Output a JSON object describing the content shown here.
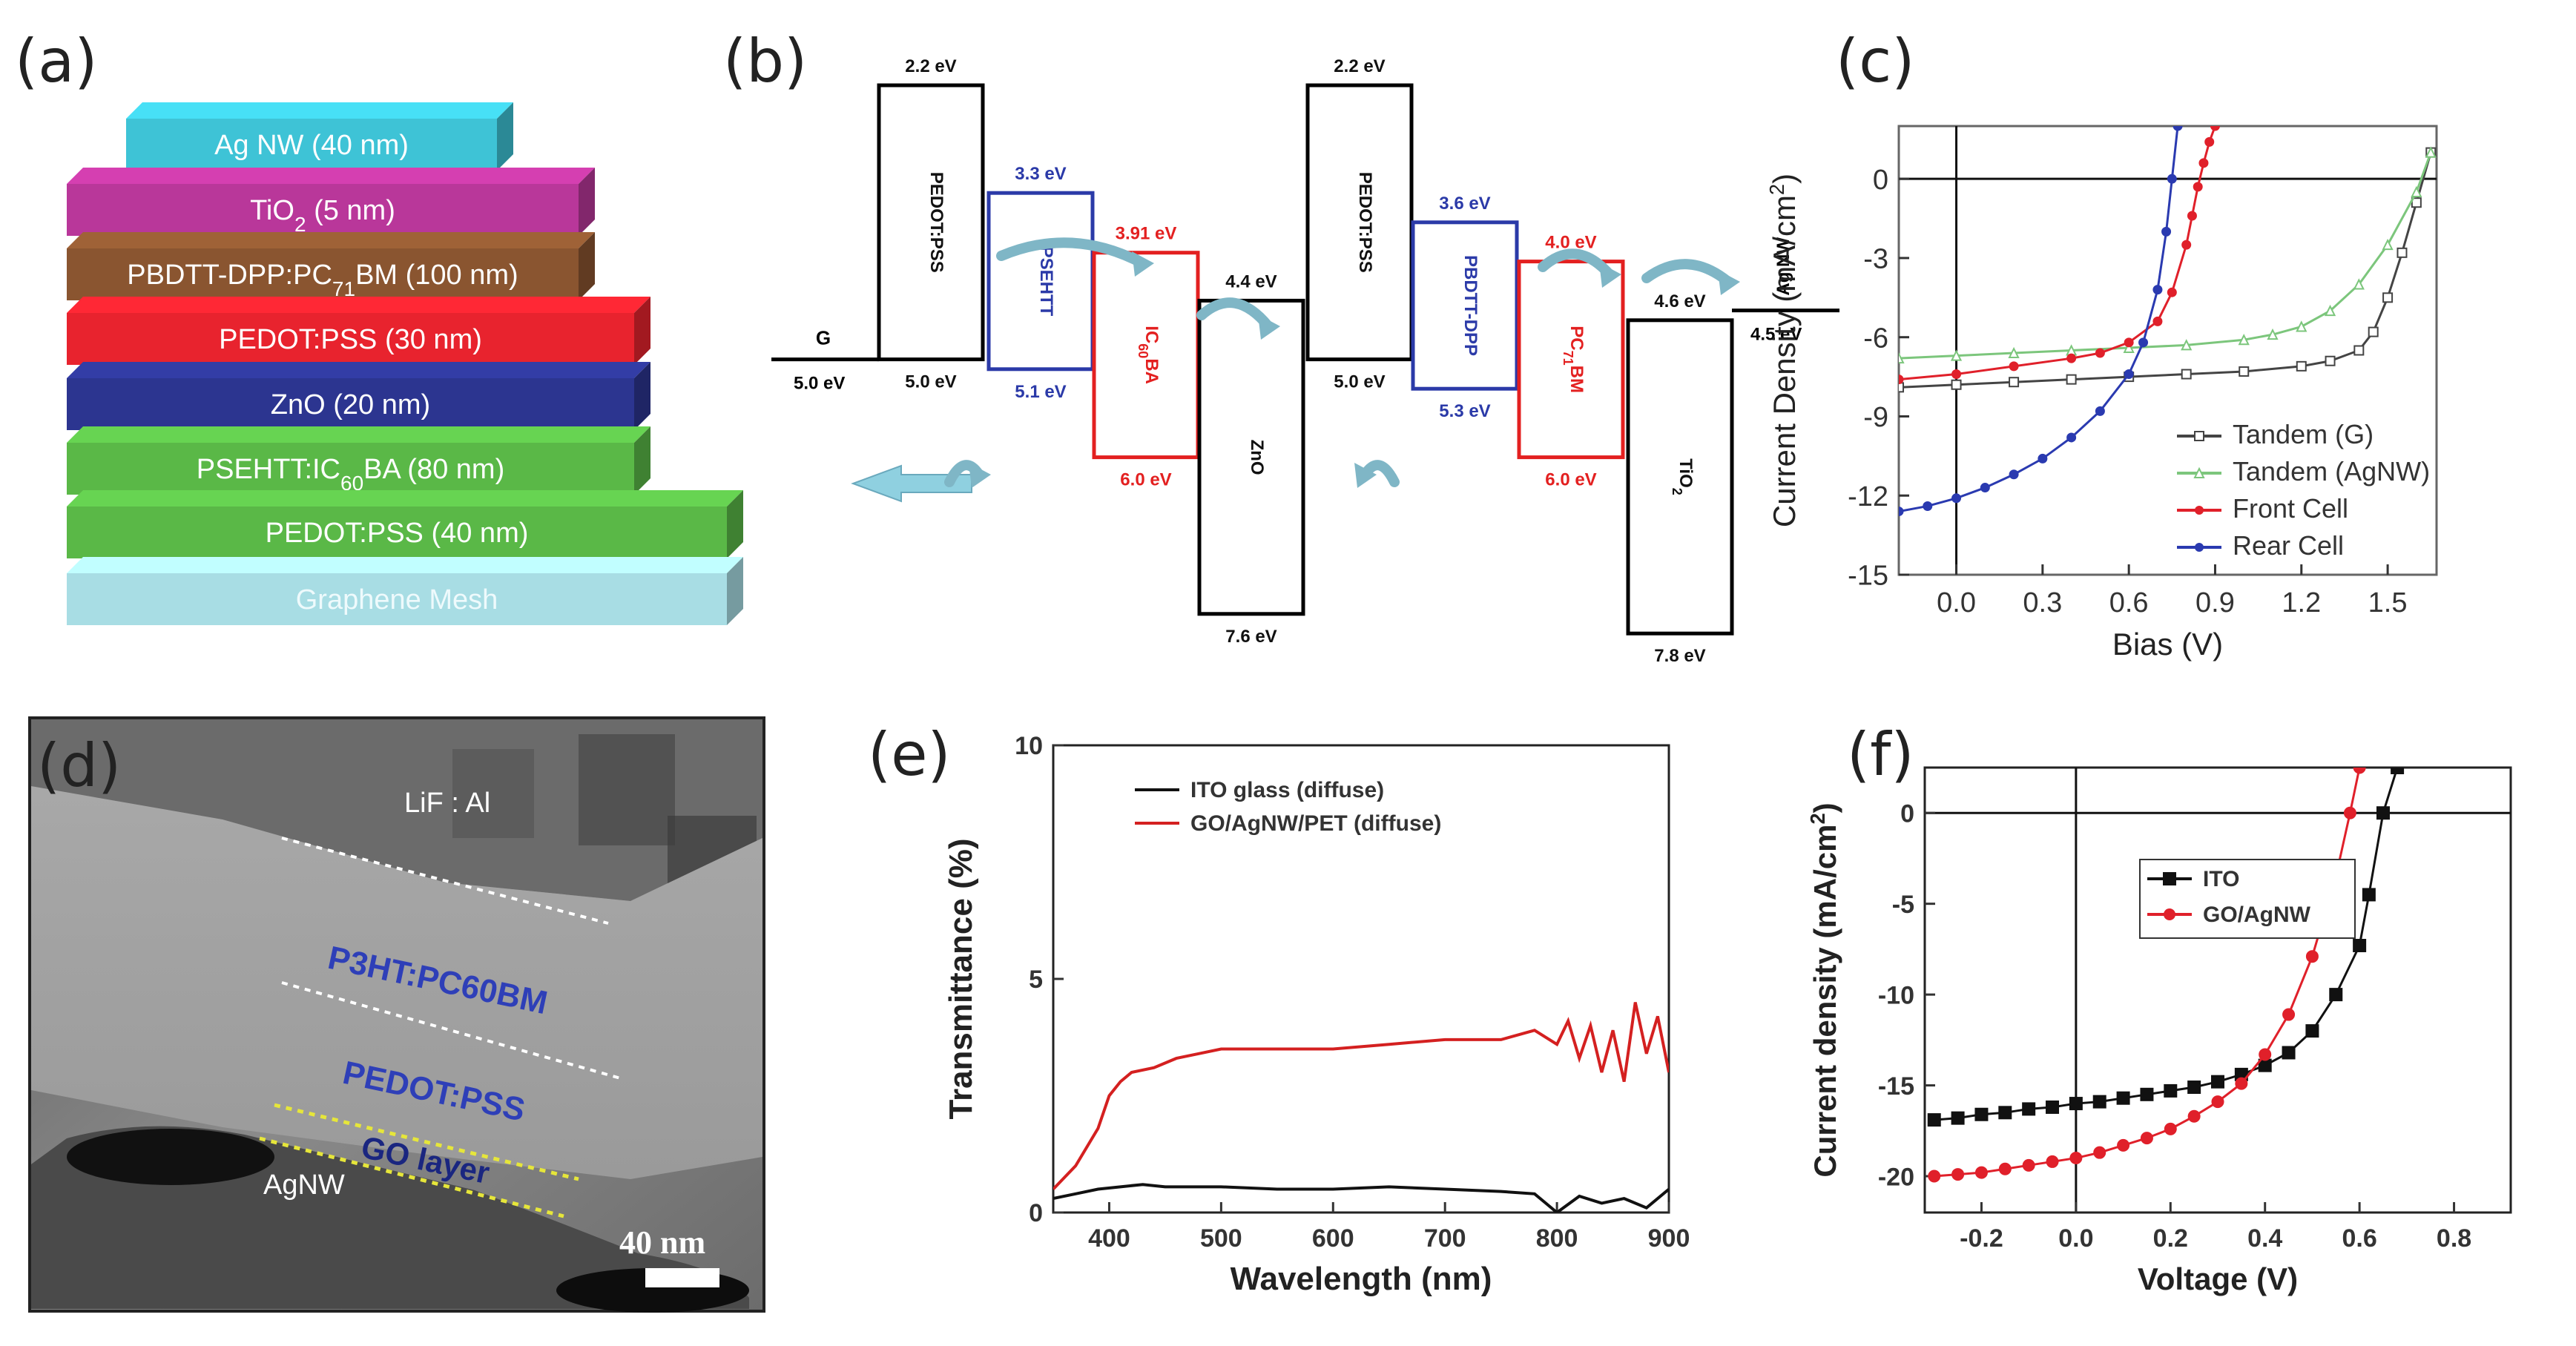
{
  "panel_labels": {
    "a": "(a)",
    "b": "(b)",
    "c": "(c)",
    "d": "(d)",
    "e": "(e)",
    "f": "(f)"
  },
  "panel_a": {
    "layers": [
      {
        "text": "Ag NW (40 nm)",
        "color": "#3ec3d6"
      },
      {
        "text": "TiO2 (5 nm)",
        "color": "#b9379a"
      },
      {
        "text": "PBDTT-DPP:PC71BM (100 nm)",
        "color": "#8a5530"
      },
      {
        "text": "PEDOT:PSS (30 nm)",
        "color": "#e8232e"
      },
      {
        "text": "ZnO (20 nm)",
        "color": "#2c3590"
      },
      {
        "text": "PSEHTT:IC60BA (80 nm)",
        "color": "#5ab847"
      },
      {
        "text": "PEDOT:PSS (40 nm)",
        "color": "#5ab847"
      },
      {
        "text": "Graphene Mesh",
        "color": "#a8dde4"
      }
    ]
  },
  "panel_b": {
    "blocks": [
      {
        "name": "PEDOT:PSS",
        "top": "2.2 eV",
        "bottom": "5.0 eV",
        "color": "#000000"
      },
      {
        "name": "PSEHTT",
        "top": "3.3 eV",
        "bottom": "5.1 eV",
        "color": "#2b3aa8"
      },
      {
        "name": "IC60BA",
        "top": "3.91 eV",
        "bottom": "6.0 eV",
        "color": "#e32020"
      },
      {
        "name": "ZnO",
        "top": "4.4 eV",
        "bottom": "7.6 eV",
        "color": "#000000"
      },
      {
        "name": "PEDOT:PSS",
        "top": "2.2 eV",
        "bottom": "5.0 eV",
        "color": "#000000"
      },
      {
        "name": "PBDTT-DPP",
        "top": "3.6 eV",
        "bottom": "5.3 eV",
        "color": "#2b3aa8"
      },
      {
        "name": "PC71BM",
        "top": "4.0 eV",
        "bottom": "6.0 eV",
        "color": "#e32020"
      },
      {
        "name": "TiO2",
        "top": "4.6 eV",
        "bottom": "7.8 eV",
        "color": "#000000"
      }
    ],
    "graphene": {
      "name": "G",
      "value": "5.0 eV"
    },
    "agnw": {
      "name": "Ag NW",
      "value": "4.5 eV"
    }
  },
  "panel_d": {
    "layer_labels": [
      "LiF : Al",
      "P3HT:PC60BM",
      "PEDOT:PSS",
      "GO layer",
      "AgNW"
    ],
    "scale_bar": "40 nm"
  },
  "chart_data": [
    {
      "id": "c",
      "type": "line",
      "xlabel": "Bias (V)",
      "ylabel": "Current Density (mA/cm2)",
      "xlim": [
        -0.2,
        1.67
      ],
      "ylim": [
        -15,
        2
      ],
      "xticks": [
        0.0,
        0.3,
        0.6,
        0.9,
        1.2,
        1.5
      ],
      "xtick_labels": [
        "0.0",
        "0.3",
        "0.6",
        "0.9",
        "1.2",
        "1.5"
      ],
      "yticks": [
        0,
        -3,
        -6,
        -9,
        -12,
        -15
      ],
      "ytick_labels": [
        "0",
        "-3",
        "-6",
        "-9",
        "-12",
        "-15"
      ],
      "series": [
        {
          "name": "Tandem (G)",
          "color": "#444444",
          "marker": "square-open",
          "x": [
            -0.2,
            0.0,
            0.2,
            0.4,
            0.6,
            0.8,
            1.0,
            1.2,
            1.3,
            1.4,
            1.45,
            1.5,
            1.55,
            1.6,
            1.65
          ],
          "y": [
            -7.9,
            -7.8,
            -7.7,
            -7.6,
            -7.5,
            -7.4,
            -7.3,
            -7.1,
            -6.9,
            -6.5,
            -5.8,
            -4.5,
            -2.8,
            -0.9,
            1.0
          ]
        },
        {
          "name": "Tandem (AgNW)",
          "color": "#7cc67c",
          "marker": "triangle-open",
          "x": [
            -0.2,
            0.0,
            0.2,
            0.4,
            0.6,
            0.8,
            1.0,
            1.1,
            1.2,
            1.3,
            1.4,
            1.5,
            1.6,
            1.65
          ],
          "y": [
            -6.8,
            -6.7,
            -6.6,
            -6.5,
            -6.4,
            -6.3,
            -6.1,
            -5.9,
            -5.6,
            -5.0,
            -4.0,
            -2.5,
            -0.5,
            1.0
          ]
        },
        {
          "name": "Front Cell",
          "color": "#e0202a",
          "marker": "circle",
          "x": [
            -0.2,
            0.0,
            0.2,
            0.4,
            0.5,
            0.6,
            0.7,
            0.75,
            0.8,
            0.82,
            0.84,
            0.86,
            0.88,
            0.9
          ],
          "y": [
            -7.6,
            -7.4,
            -7.1,
            -6.8,
            -6.6,
            -6.2,
            -5.4,
            -4.3,
            -2.5,
            -1.4,
            -0.3,
            0.6,
            1.4,
            2.0
          ]
        },
        {
          "name": "Rear Cell",
          "color": "#2a3ab0",
          "marker": "circle",
          "x": [
            -0.2,
            -0.1,
            0.0,
            0.1,
            0.2,
            0.3,
            0.4,
            0.5,
            0.6,
            0.65,
            0.7,
            0.73,
            0.75,
            0.77
          ],
          "y": [
            -12.6,
            -12.4,
            -12.1,
            -11.7,
            -11.2,
            -10.6,
            -9.8,
            -8.8,
            -7.4,
            -6.2,
            -4.2,
            -2.0,
            0.0,
            2.0
          ]
        }
      ]
    },
    {
      "id": "e",
      "type": "line",
      "xlabel": "Wavelength (nm)",
      "ylabel": "Transmittance (%)",
      "xlim": [
        350,
        900
      ],
      "ylim": [
        0,
        10
      ],
      "xticks": [
        400,
        500,
        600,
        700,
        800,
        900
      ],
      "xtick_labels": [
        "400",
        "500",
        "600",
        "700",
        "800",
        "900"
      ],
      "yticks": [
        0,
        5,
        10
      ],
      "ytick_labels": [
        "0",
        "5",
        "10"
      ],
      "series": [
        {
          "name": "ITO glass (diffuse)",
          "color": "#111111",
          "x": [
            350,
            370,
            390,
            410,
            430,
            450,
            500,
            550,
            600,
            650,
            700,
            750,
            780,
            790,
            800,
            820,
            840,
            860,
            880,
            900
          ],
          "y": [
            0.3,
            0.4,
            0.5,
            0.55,
            0.6,
            0.55,
            0.55,
            0.5,
            0.5,
            0.55,
            0.5,
            0.45,
            0.4,
            0.2,
            0.0,
            0.35,
            0.2,
            0.3,
            0.1,
            0.5
          ]
        },
        {
          "name": "GO/AgNW/PET (diffuse)",
          "color": "#d42020",
          "x": [
            350,
            370,
            390,
            400,
            410,
            420,
            440,
            460,
            480,
            500,
            550,
            600,
            650,
            700,
            750,
            780,
            800,
            810,
            820,
            830,
            840,
            850,
            860,
            870,
            880,
            890,
            900
          ],
          "y": [
            0.5,
            1.0,
            1.8,
            2.5,
            2.8,
            3.0,
            3.1,
            3.3,
            3.4,
            3.5,
            3.5,
            3.5,
            3.6,
            3.7,
            3.7,
            3.9,
            3.6,
            4.1,
            3.3,
            4.0,
            3.0,
            3.9,
            2.8,
            4.5,
            3.4,
            4.2,
            3.0
          ]
        }
      ]
    },
    {
      "id": "f",
      "type": "line",
      "xlabel": "Voltage (V)",
      "ylabel": "Current density (mA/cm2)",
      "xlim": [
        -0.32,
        0.92
      ],
      "ylim": [
        -22,
        2.5
      ],
      "xticks": [
        -0.2,
        0.0,
        0.2,
        0.4,
        0.6,
        0.8
      ],
      "xtick_labels": [
        "-0.2",
        "0.0",
        "0.2",
        "0.4",
        "0.6",
        "0.8"
      ],
      "yticks": [
        0,
        -5,
        -10,
        -15,
        -20
      ],
      "ytick_labels": [
        "0",
        "-5",
        "-10",
        "-15",
        "-20"
      ],
      "series": [
        {
          "name": "ITO",
          "color": "#111111",
          "marker": "square",
          "x": [
            -0.3,
            -0.25,
            -0.2,
            -0.15,
            -0.1,
            -0.05,
            0.0,
            0.05,
            0.1,
            0.15,
            0.2,
            0.25,
            0.3,
            0.35,
            0.4,
            0.45,
            0.5,
            0.55,
            0.6,
            0.62,
            0.65,
            0.68
          ],
          "y": [
            -16.9,
            -16.8,
            -16.6,
            -16.5,
            -16.3,
            -16.2,
            -16.0,
            -15.9,
            -15.7,
            -15.5,
            -15.3,
            -15.1,
            -14.8,
            -14.4,
            -13.9,
            -13.2,
            -12.0,
            -10.0,
            -7.3,
            -4.5,
            0.0,
            2.5
          ]
        },
        {
          "name": "GO/AgNW",
          "color": "#e0202a",
          "marker": "circle",
          "x": [
            -0.3,
            -0.25,
            -0.2,
            -0.15,
            -0.1,
            -0.05,
            0.0,
            0.05,
            0.1,
            0.15,
            0.2,
            0.25,
            0.3,
            0.35,
            0.4,
            0.45,
            0.5,
            0.55,
            0.58,
            0.6
          ],
          "y": [
            -20.0,
            -19.9,
            -19.8,
            -19.6,
            -19.4,
            -19.2,
            -19.0,
            -18.7,
            -18.3,
            -17.9,
            -17.4,
            -16.7,
            -15.9,
            -14.9,
            -13.3,
            -11.1,
            -7.9,
            -3.5,
            0.0,
            2.5
          ]
        }
      ]
    }
  ]
}
